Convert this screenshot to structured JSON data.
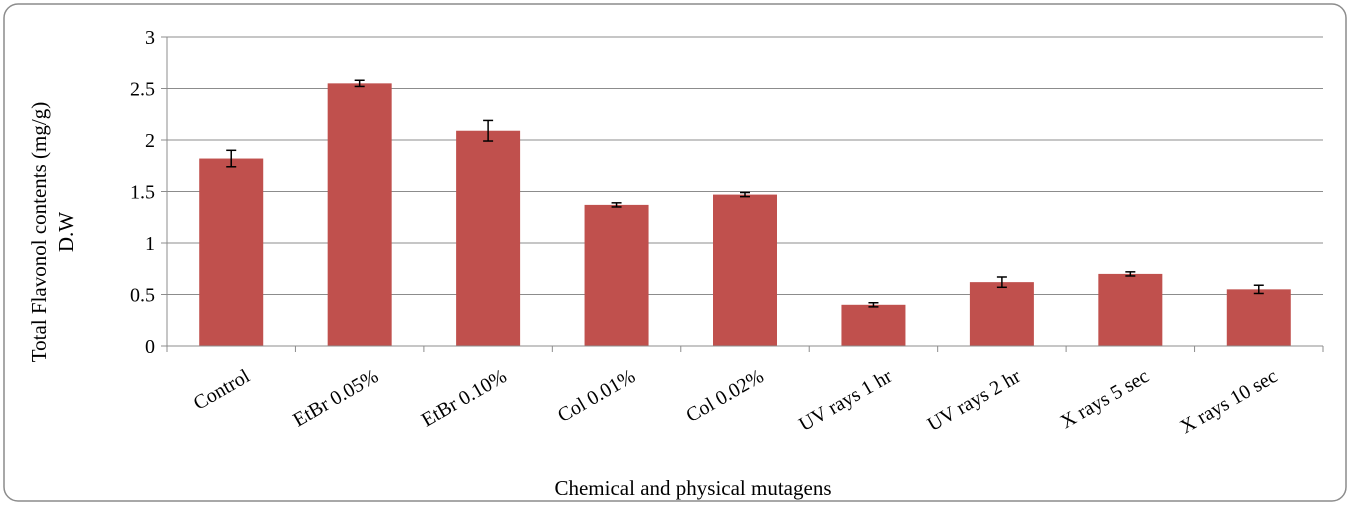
{
  "chart_data": {
    "type": "bar",
    "categories": [
      "Control",
      "EtBr 0.05%",
      "EtBr 0.10%",
      "Col 0.01%",
      "Col 0.02%",
      "UV rays 1 hr",
      "UV rays 2 hr",
      "X rays 5 sec",
      "X rays 10 sec"
    ],
    "series": [
      {
        "values": [
          1.82,
          2.55,
          2.09,
          1.37,
          1.47,
          0.4,
          0.62,
          0.7,
          0.55
        ],
        "errors": [
          0.08,
          0.03,
          0.1,
          0.02,
          0.02,
          0.02,
          0.05,
          0.02,
          0.04
        ],
        "color": "#c0504d"
      }
    ],
    "xlabel": "Chemical and physical mutagens",
    "ylabel_line1": "Total Flavonol contents  (mg/g)",
    "ylabel_line2": "D.W",
    "ylim": [
      0,
      3
    ],
    "yticks": [
      "0",
      "0.5",
      "1",
      "1.5",
      "2",
      "2.5",
      "3"
    ],
    "ytick_values": [
      0,
      0.5,
      1,
      1.5,
      2,
      2.5,
      3
    ],
    "grid": true,
    "legend": "none",
    "colors": {
      "bar": "#c0504d",
      "gridline": "#8c8c8c",
      "frame": "#8c8c8c"
    }
  }
}
